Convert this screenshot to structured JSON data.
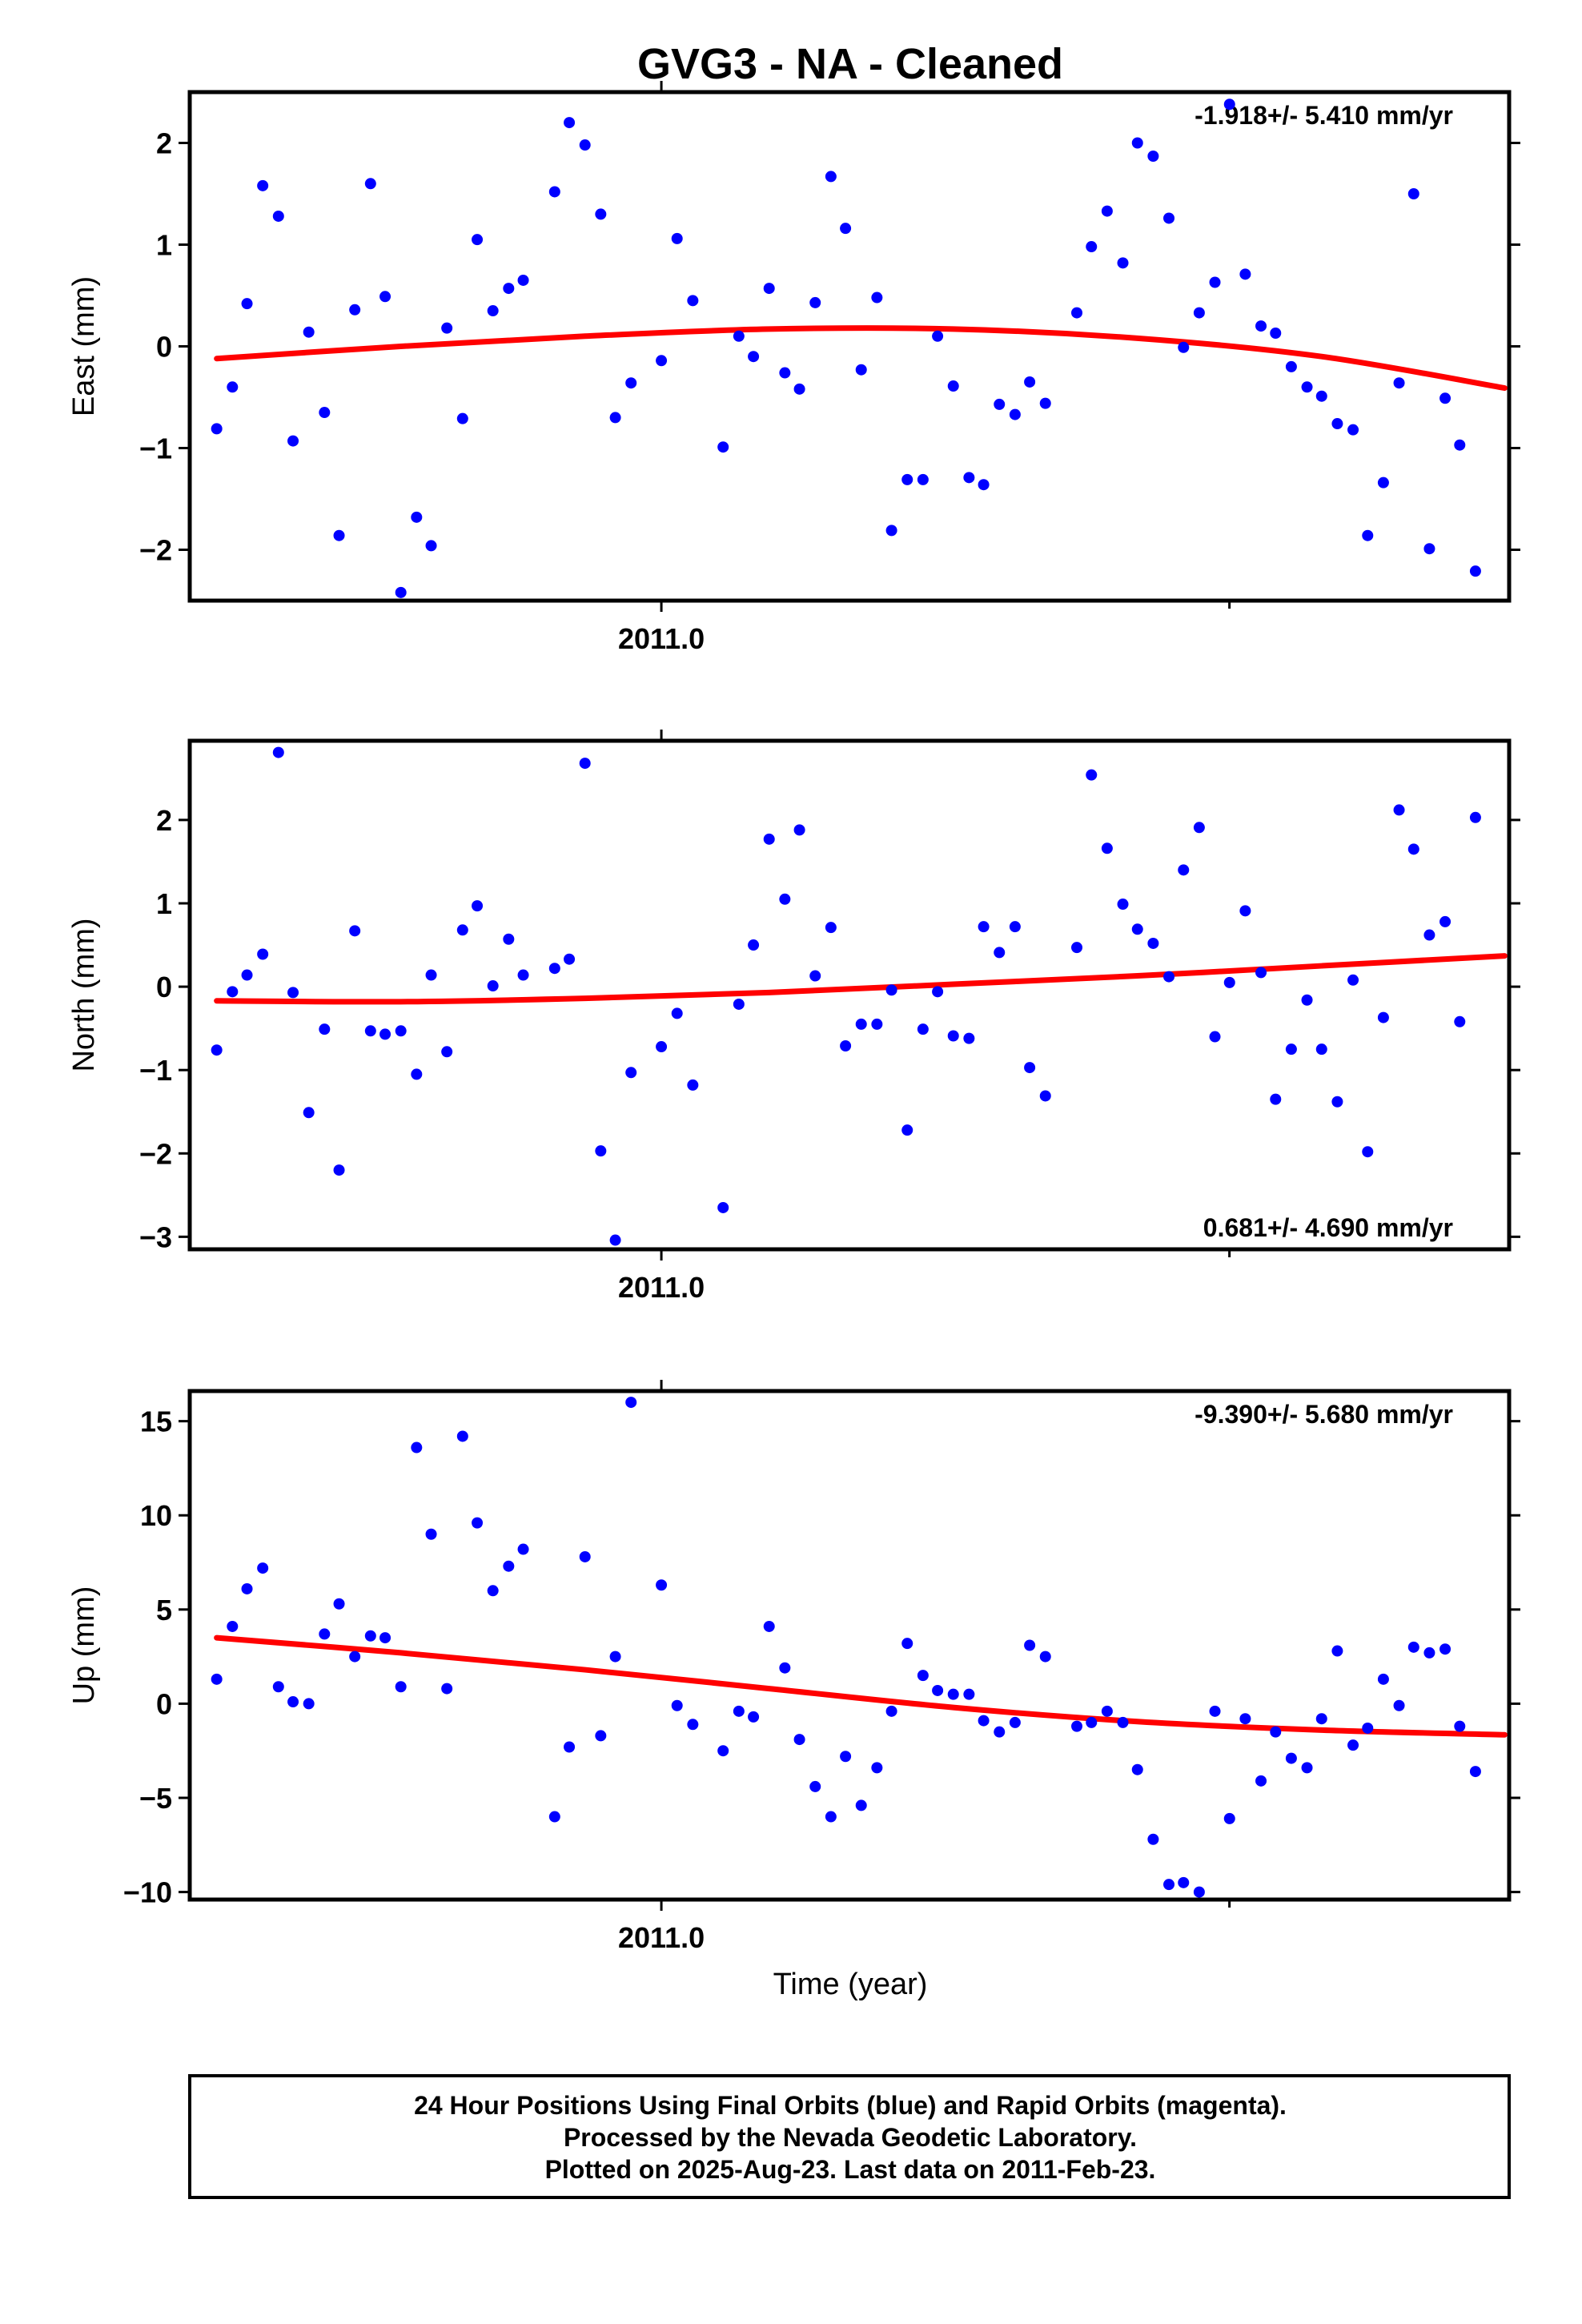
{
  "colors": {
    "final_orbits": "#0000ff",
    "trend": "#ff0000",
    "frame": "#000000"
  },
  "chart_data": {
    "type": "scatter",
    "title": "GVG3  - NA - Cleaned",
    "xlabel": "Time (year)",
    "x_tick_label": "2011.0",
    "x_tick_value": 2011.0,
    "x_range": [
      2010.58,
      2011.755
    ],
    "panels": [
      {
        "key": "east",
        "ylabel": "East (mm)",
        "ylim": [
          -2.5,
          2.5
        ],
        "yticks": [
          2,
          1,
          0,
          -1,
          -2
        ],
        "ytick_labels": [
          "2",
          "1",
          "0",
          "−1",
          "−2"
        ],
        "rate_label": "-1.918+/- 5.410 mm/yr",
        "rate_position": "top-right",
        "trend": {
          "x": [
            2010.604,
            2010.768,
            2010.932,
            2011.096,
            2011.26,
            2011.424,
            2011.588,
            2011.751
          ],
          "y": [
            -0.12,
            0.0,
            0.1,
            0.17,
            0.17,
            0.08,
            -0.1,
            -0.41
          ]
        },
        "points": [
          [
            2010.604,
            -0.81
          ],
          [
            2010.618,
            -0.4
          ],
          [
            2010.631,
            0.42
          ],
          [
            2010.645,
            1.58
          ],
          [
            2010.659,
            1.28
          ],
          [
            2010.672,
            -0.93
          ],
          [
            2010.686,
            0.14
          ],
          [
            2010.7,
            -0.65
          ],
          [
            2010.713,
            -1.86
          ],
          [
            2010.727,
            0.36
          ],
          [
            2010.741,
            1.6
          ],
          [
            2010.754,
            0.49
          ],
          [
            2010.768,
            -2.42
          ],
          [
            2010.782,
            -1.68
          ],
          [
            2010.795,
            -1.96
          ],
          [
            2010.809,
            0.18
          ],
          [
            2010.823,
            -0.71
          ],
          [
            2010.836,
            1.05
          ],
          [
            2010.85,
            0.35
          ],
          [
            2010.864,
            0.57
          ],
          [
            2010.877,
            0.65
          ],
          [
            2010.905,
            1.52
          ],
          [
            2010.918,
            2.2
          ],
          [
            2010.932,
            1.98
          ],
          [
            2010.946,
            1.3
          ],
          [
            2010.959,
            -0.7
          ],
          [
            2010.973,
            -0.36
          ],
          [
            2011.0,
            -0.14
          ],
          [
            2011.014,
            1.06
          ],
          [
            2011.028,
            0.45
          ],
          [
            2011.055,
            -0.99
          ],
          [
            2011.069,
            0.1
          ],
          [
            2011.082,
            -0.1
          ],
          [
            2011.096,
            0.57
          ],
          [
            2011.11,
            -0.26
          ],
          [
            2011.123,
            -0.42
          ],
          [
            2011.137,
            0.43
          ],
          [
            2011.151,
            1.67
          ],
          [
            2011.164,
            1.16
          ],
          [
            2011.178,
            -0.23
          ],
          [
            2011.192,
            0.48
          ],
          [
            2011.205,
            -1.81
          ],
          [
            2011.219,
            -1.31
          ],
          [
            2011.233,
            -1.31
          ],
          [
            2011.246,
            0.1
          ],
          [
            2011.26,
            -0.39
          ],
          [
            2011.274,
            -1.29
          ],
          [
            2011.287,
            -1.36
          ],
          [
            2011.301,
            -0.57
          ],
          [
            2011.315,
            -0.67
          ],
          [
            2011.328,
            -0.35
          ],
          [
            2011.342,
            -0.56
          ],
          [
            2011.37,
            0.33
          ],
          [
            2011.383,
            0.98
          ],
          [
            2011.397,
            1.33
          ],
          [
            2011.411,
            0.82
          ],
          [
            2011.424,
            2.0
          ],
          [
            2011.438,
            1.87
          ],
          [
            2011.452,
            1.26
          ],
          [
            2011.465,
            -0.01
          ],
          [
            2011.479,
            0.33
          ],
          [
            2011.493,
            0.63
          ],
          [
            2011.506,
            2.38
          ],
          [
            2011.52,
            0.71
          ],
          [
            2011.534,
            0.2
          ],
          [
            2011.547,
            0.13
          ],
          [
            2011.561,
            -0.2
          ],
          [
            2011.575,
            -0.4
          ],
          [
            2011.588,
            -0.49
          ],
          [
            2011.602,
            -0.76
          ],
          [
            2011.616,
            -0.82
          ],
          [
            2011.629,
            -1.86
          ],
          [
            2011.643,
            -1.34
          ],
          [
            2011.657,
            -0.36
          ],
          [
            2011.67,
            1.5
          ],
          [
            2011.684,
            -1.99
          ],
          [
            2011.698,
            -0.51
          ],
          [
            2011.711,
            -0.97
          ],
          [
            2011.725,
            -2.21
          ]
        ]
      },
      {
        "key": "north",
        "ylabel": "North (mm)",
        "ylim": [
          -3.15,
          2.95
        ],
        "yticks": [
          2,
          1,
          0,
          -1,
          -2,
          -3
        ],
        "ytick_labels": [
          "2",
          "1",
          "0",
          "−1",
          "−2",
          "−3"
        ],
        "rate_label": "0.681+/- 4.690 mm/yr",
        "rate_position": "bottom-right",
        "trend": {
          "x": [
            2010.604,
            2010.768,
            2010.932,
            2011.096,
            2011.26,
            2011.424,
            2011.588,
            2011.751
          ],
          "y": [
            -0.17,
            -0.18,
            -0.14,
            -0.07,
            0.03,
            0.13,
            0.25,
            0.37
          ]
        },
        "points": [
          [
            2010.604,
            -0.76
          ],
          [
            2010.618,
            -0.06
          ],
          [
            2010.631,
            0.14
          ],
          [
            2010.645,
            0.39
          ],
          [
            2010.659,
            2.81
          ],
          [
            2010.672,
            -0.07
          ],
          [
            2010.686,
            -1.51
          ],
          [
            2010.7,
            -0.51
          ],
          [
            2010.713,
            -2.2
          ],
          [
            2010.727,
            0.67
          ],
          [
            2010.741,
            -0.53
          ],
          [
            2010.754,
            -0.57
          ],
          [
            2010.768,
            -0.53
          ],
          [
            2010.782,
            -1.05
          ],
          [
            2010.795,
            0.14
          ],
          [
            2010.809,
            -0.78
          ],
          [
            2010.823,
            0.68
          ],
          [
            2010.836,
            0.97
          ],
          [
            2010.85,
            0.01
          ],
          [
            2010.864,
            0.57
          ],
          [
            2010.877,
            0.14
          ],
          [
            2010.905,
            0.22
          ],
          [
            2010.918,
            0.33
          ],
          [
            2010.932,
            2.68
          ],
          [
            2010.946,
            -1.97
          ],
          [
            2010.959,
            -3.04
          ],
          [
            2010.973,
            -1.03
          ],
          [
            2011.0,
            -0.72
          ],
          [
            2011.014,
            -0.32
          ],
          [
            2011.028,
            -1.18
          ],
          [
            2011.055,
            -2.65
          ],
          [
            2011.069,
            -0.21
          ],
          [
            2011.082,
            0.5
          ],
          [
            2011.096,
            1.77
          ],
          [
            2011.11,
            1.05
          ],
          [
            2011.123,
            1.88
          ],
          [
            2011.137,
            0.13
          ],
          [
            2011.151,
            0.71
          ],
          [
            2011.164,
            -0.71
          ],
          [
            2011.178,
            -0.45
          ],
          [
            2011.192,
            -0.45
          ],
          [
            2011.205,
            -0.04
          ],
          [
            2011.219,
            -1.72
          ],
          [
            2011.233,
            -0.51
          ],
          [
            2011.246,
            -0.06
          ],
          [
            2011.26,
            -0.59
          ],
          [
            2011.274,
            -0.62
          ],
          [
            2011.287,
            0.72
          ],
          [
            2011.301,
            0.41
          ],
          [
            2011.315,
            0.72
          ],
          [
            2011.328,
            -0.97
          ],
          [
            2011.342,
            -1.31
          ],
          [
            2011.37,
            0.47
          ],
          [
            2011.383,
            2.54
          ],
          [
            2011.397,
            1.66
          ],
          [
            2011.411,
            0.99
          ],
          [
            2011.424,
            0.69
          ],
          [
            2011.438,
            0.52
          ],
          [
            2011.452,
            0.12
          ],
          [
            2011.465,
            1.4
          ],
          [
            2011.479,
            1.91
          ],
          [
            2011.493,
            -0.6
          ],
          [
            2011.506,
            0.05
          ],
          [
            2011.52,
            0.91
          ],
          [
            2011.534,
            0.17
          ],
          [
            2011.547,
            -1.35
          ],
          [
            2011.561,
            -0.75
          ],
          [
            2011.575,
            -0.16
          ],
          [
            2011.588,
            -0.75
          ],
          [
            2011.602,
            -1.38
          ],
          [
            2011.616,
            0.08
          ],
          [
            2011.629,
            -1.98
          ],
          [
            2011.643,
            -0.37
          ],
          [
            2011.657,
            2.12
          ],
          [
            2011.67,
            1.65
          ],
          [
            2011.684,
            0.62
          ],
          [
            2011.698,
            0.78
          ],
          [
            2011.711,
            -0.42
          ],
          [
            2011.725,
            2.03
          ]
        ]
      },
      {
        "key": "up",
        "ylabel": "Up (mm)",
        "ylim": [
          -10.4,
          16.6
        ],
        "yticks": [
          15,
          10,
          5,
          0,
          -5,
          -10
        ],
        "ytick_labels": [
          "15",
          "10",
          "5",
          "0",
          "−5",
          "−10"
        ],
        "rate_label": "-9.390+/- 5.680 mm/yr",
        "rate_position": "top-right",
        "trend": {
          "x": [
            2010.604,
            2010.768,
            2010.932,
            2011.096,
            2011.26,
            2011.424,
            2011.588,
            2011.751
          ],
          "y": [
            3.5,
            2.7,
            1.8,
            0.8,
            -0.2,
            -0.95,
            -1.4,
            -1.65
          ]
        },
        "points": [
          [
            2010.604,
            1.3
          ],
          [
            2010.618,
            4.1
          ],
          [
            2010.631,
            6.1
          ],
          [
            2010.645,
            7.2
          ],
          [
            2010.659,
            0.9
          ],
          [
            2010.672,
            0.1
          ],
          [
            2010.686,
            0.0
          ],
          [
            2010.7,
            3.7
          ],
          [
            2010.713,
            5.3
          ],
          [
            2010.727,
            2.5
          ],
          [
            2010.741,
            3.6
          ],
          [
            2010.754,
            3.5
          ],
          [
            2010.768,
            0.9
          ],
          [
            2010.782,
            13.6
          ],
          [
            2010.795,
            9.0
          ],
          [
            2010.809,
            0.8
          ],
          [
            2010.823,
            14.2
          ],
          [
            2010.836,
            9.6
          ],
          [
            2010.85,
            6.0
          ],
          [
            2010.864,
            7.3
          ],
          [
            2010.877,
            8.2
          ],
          [
            2010.905,
            -6.0
          ],
          [
            2010.918,
            -2.3
          ],
          [
            2010.932,
            7.8
          ],
          [
            2010.946,
            -1.7
          ],
          [
            2010.959,
            2.5
          ],
          [
            2010.973,
            16.0
          ],
          [
            2011.0,
            6.3
          ],
          [
            2011.014,
            -0.1
          ],
          [
            2011.028,
            -1.1
          ],
          [
            2011.055,
            -2.5
          ],
          [
            2011.069,
            -0.4
          ],
          [
            2011.082,
            -0.7
          ],
          [
            2011.096,
            4.1
          ],
          [
            2011.11,
            1.9
          ],
          [
            2011.123,
            -1.9
          ],
          [
            2011.137,
            -4.4
          ],
          [
            2011.151,
            -6.0
          ],
          [
            2011.164,
            -2.8
          ],
          [
            2011.178,
            -5.4
          ],
          [
            2011.192,
            -3.4
          ],
          [
            2011.205,
            -0.4
          ],
          [
            2011.219,
            3.2
          ],
          [
            2011.233,
            1.5
          ],
          [
            2011.246,
            0.7
          ],
          [
            2011.26,
            0.5
          ],
          [
            2011.274,
            0.5
          ],
          [
            2011.287,
            -0.9
          ],
          [
            2011.301,
            -1.5
          ],
          [
            2011.315,
            -1.0
          ],
          [
            2011.328,
            3.1
          ],
          [
            2011.342,
            2.5
          ],
          [
            2011.37,
            -1.2
          ],
          [
            2011.383,
            -1.0
          ],
          [
            2011.397,
            -0.4
          ],
          [
            2011.411,
            -1.0
          ],
          [
            2011.424,
            -3.5
          ],
          [
            2011.438,
            -7.2
          ],
          [
            2011.452,
            -9.6
          ],
          [
            2011.465,
            -9.5
          ],
          [
            2011.479,
            -10.0
          ],
          [
            2011.493,
            -0.4
          ],
          [
            2011.506,
            -6.1
          ],
          [
            2011.52,
            -0.8
          ],
          [
            2011.534,
            -4.1
          ],
          [
            2011.547,
            -1.5
          ],
          [
            2011.561,
            -2.9
          ],
          [
            2011.575,
            -3.4
          ],
          [
            2011.588,
            -0.8
          ],
          [
            2011.602,
            2.8
          ],
          [
            2011.616,
            -2.2
          ],
          [
            2011.629,
            -1.3
          ],
          [
            2011.643,
            1.3
          ],
          [
            2011.657,
            -0.1
          ],
          [
            2011.67,
            3.0
          ],
          [
            2011.684,
            2.7
          ],
          [
            2011.698,
            2.9
          ],
          [
            2011.711,
            -1.2
          ],
          [
            2011.725,
            -3.6
          ]
        ]
      }
    ],
    "footer_lines": [
      "24 Hour Positions Using Final Orbits (blue) and Rapid Orbits (magenta).",
      "Processed by the Nevada Geodetic Laboratory.",
      "Plotted on 2025-Aug-23. Last data on 2011-Feb-23."
    ]
  }
}
